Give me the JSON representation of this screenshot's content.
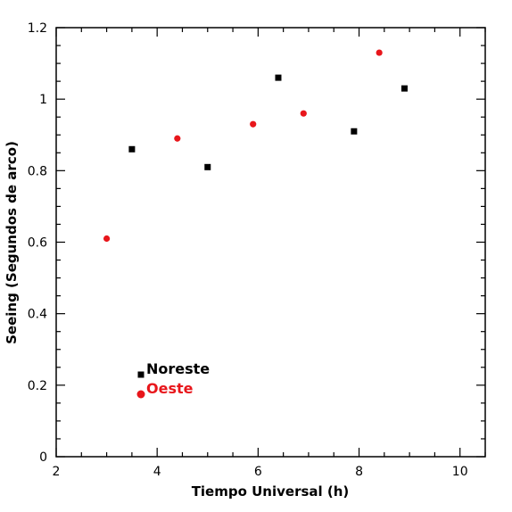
{
  "chart_data": {
    "type": "scatter",
    "title": "",
    "xlabel": "Tiempo Universal (h)",
    "ylabel": "Seeing (Segundos de arco)",
    "xlim": [
      2,
      10.5
    ],
    "ylim": [
      0,
      1.2
    ],
    "x_ticks": [
      "2",
      "4",
      "6",
      "8",
      "10"
    ],
    "y_ticks": [
      "0",
      "0.2",
      "0.4",
      "0.6",
      "0.8",
      "1",
      "1.2"
    ],
    "grid": false,
    "legend_position": "bottom-left",
    "series": [
      {
        "name": "Noreste",
        "marker": "square",
        "color": "#000000",
        "points": [
          {
            "x": 3.5,
            "y": 0.86
          },
          {
            "x": 5.0,
            "y": 0.81
          },
          {
            "x": 6.4,
            "y": 1.06
          },
          {
            "x": 7.9,
            "y": 0.91
          },
          {
            "x": 8.9,
            "y": 1.03
          }
        ]
      },
      {
        "name": "Oeste",
        "marker": "circle",
        "color": "#e8161b",
        "points": [
          {
            "x": 3.0,
            "y": 0.61
          },
          {
            "x": 4.4,
            "y": 0.89
          },
          {
            "x": 5.9,
            "y": 0.93
          },
          {
            "x": 6.9,
            "y": 0.96
          },
          {
            "x": 8.4,
            "y": 1.13
          }
        ]
      }
    ]
  }
}
